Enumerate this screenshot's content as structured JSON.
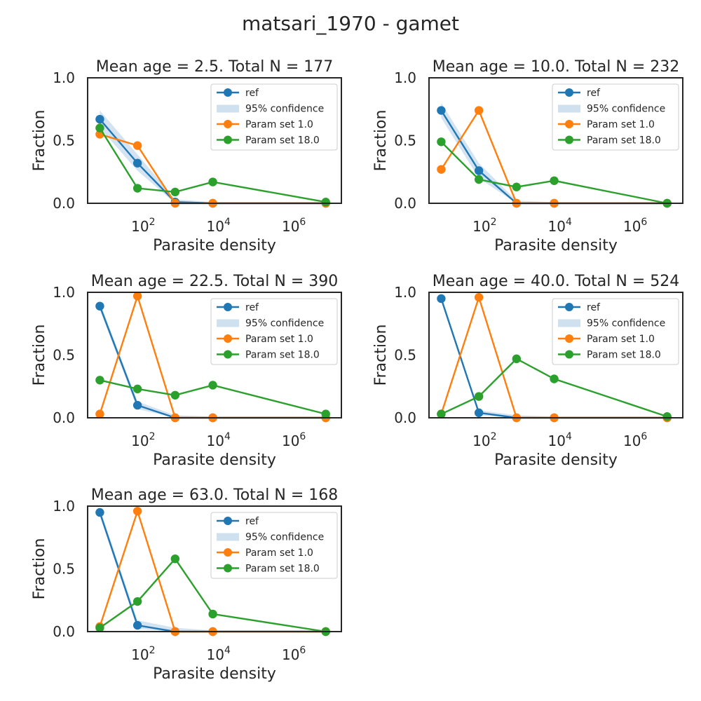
{
  "figure_title": "matsari_1970 - gamet",
  "colors": {
    "ref": "#1f77b4",
    "confidence": "#cfe0ef",
    "param1": "#ff7f0e",
    "param18": "#2ca02c",
    "axes": "#262626"
  },
  "chart_data": [
    {
      "type": "line",
      "title": "Mean age = 2.5.  Total N = 177",
      "xlabel": "Parasite density",
      "ylabel": "Fraction",
      "xscale": "log",
      "ylim": [
        0,
        1
      ],
      "x_ticks": [
        "10^2",
        "10^4",
        "10^6"
      ],
      "y_ticks": [
        "0.0",
        "0.5",
        "1.0"
      ],
      "legend": [
        "ref",
        "95% confidence",
        "Param set 1.0",
        "Param set 18.0"
      ],
      "legend_position": "top-right",
      "x": [
        5,
        50,
        500,
        5000,
        5000000
      ],
      "series": [
        {
          "name": "ref",
          "values": [
            0.67,
            0.32,
            0.01,
            0.0,
            0.0
          ],
          "ci_low": [
            0.6,
            0.26,
            0.0,
            0.0,
            0.0
          ],
          "ci_high": [
            0.74,
            0.39,
            0.03,
            0.01,
            0.01
          ]
        },
        {
          "name": "Param set 1.0",
          "values": [
            0.55,
            0.46,
            0.0,
            0.0,
            0.0
          ]
        },
        {
          "name": "Param set 18.0",
          "values": [
            0.6,
            0.12,
            0.09,
            0.17,
            0.01
          ]
        }
      ]
    },
    {
      "type": "line",
      "title": "Mean age = 10.0.  Total N = 232",
      "xlabel": "Parasite density",
      "ylabel": "Fraction",
      "xscale": "log",
      "ylim": [
        0,
        1
      ],
      "x_ticks": [
        "10^2",
        "10^4",
        "10^6"
      ],
      "y_ticks": [
        "0.0",
        "0.5",
        "1.0"
      ],
      "legend": [
        "ref",
        "95% confidence",
        "Param set 1.0",
        "Param set 18.0"
      ],
      "legend_position": "top-right",
      "x": [
        5,
        50,
        500,
        5000,
        5000000
      ],
      "series": [
        {
          "name": "ref",
          "values": [
            0.74,
            0.26,
            0.0,
            0.0,
            0.0
          ],
          "ci_low": [
            0.68,
            0.2,
            0.0,
            0.0,
            0.0
          ],
          "ci_high": [
            0.8,
            0.32,
            0.02,
            0.01,
            0.01
          ]
        },
        {
          "name": "Param set 1.0",
          "values": [
            0.27,
            0.74,
            0.0,
            0.0,
            0.0
          ]
        },
        {
          "name": "Param set 18.0",
          "values": [
            0.49,
            0.19,
            0.13,
            0.18,
            0.0
          ]
        }
      ]
    },
    {
      "type": "line",
      "title": "Mean age = 22.5.  Total N = 390",
      "xlabel": "Parasite density",
      "ylabel": "Fraction",
      "xscale": "log",
      "ylim": [
        0,
        1
      ],
      "x_ticks": [
        "10^2",
        "10^4",
        "10^6"
      ],
      "y_ticks": [
        "0.0",
        "0.5",
        "1.0"
      ],
      "legend": [
        "ref",
        "95% confidence",
        "Param set 1.0",
        "Param set 18.0"
      ],
      "legend_position": "top-right",
      "x": [
        5,
        50,
        500,
        5000,
        5000000
      ],
      "series": [
        {
          "name": "ref",
          "values": [
            0.89,
            0.1,
            0.0,
            0.0,
            0.0
          ],
          "ci_low": [
            0.86,
            0.07,
            0.0,
            0.0,
            0.0
          ],
          "ci_high": [
            0.92,
            0.13,
            0.02,
            0.01,
            0.01
          ]
        },
        {
          "name": "Param set 1.0",
          "values": [
            0.03,
            0.97,
            0.0,
            0.0,
            0.0
          ]
        },
        {
          "name": "Param set 18.0",
          "values": [
            0.3,
            0.23,
            0.18,
            0.26,
            0.03
          ]
        }
      ]
    },
    {
      "type": "line",
      "title": "Mean age = 40.0.  Total N = 524",
      "xlabel": "Parasite density",
      "ylabel": "Fraction",
      "xscale": "log",
      "ylim": [
        0,
        1
      ],
      "x_ticks": [
        "10^2",
        "10^4",
        "10^6"
      ],
      "y_ticks": [
        "0.0",
        "0.5",
        "1.0"
      ],
      "legend": [
        "ref",
        "95% confidence",
        "Param set 1.0",
        "Param set 18.0"
      ],
      "legend_position": "top-right",
      "x": [
        5,
        50,
        500,
        5000,
        5000000
      ],
      "series": [
        {
          "name": "ref",
          "values": [
            0.95,
            0.04,
            0.0,
            0.0,
            0.0
          ],
          "ci_low": [
            0.93,
            0.02,
            0.0,
            0.0,
            0.0
          ],
          "ci_high": [
            0.97,
            0.06,
            0.02,
            0.01,
            0.01
          ]
        },
        {
          "name": "Param set 1.0",
          "values": [
            0.03,
            0.96,
            0.0,
            0.0,
            0.0
          ]
        },
        {
          "name": "Param set 18.0",
          "values": [
            0.03,
            0.17,
            0.47,
            0.31,
            0.01
          ]
        }
      ]
    },
    {
      "type": "line",
      "title": "Mean age = 63.0.  Total N = 168",
      "xlabel": "Parasite density",
      "ylabel": "Fraction",
      "xscale": "log",
      "ylim": [
        0,
        1
      ],
      "x_ticks": [
        "10^2",
        "10^4",
        "10^6"
      ],
      "y_ticks": [
        "0.0",
        "0.5",
        "1.0"
      ],
      "legend": [
        "ref",
        "95% confidence",
        "Param set 1.0",
        "Param set 18.0"
      ],
      "legend_position": "top-right",
      "x": [
        5,
        50,
        500,
        5000,
        5000000
      ],
      "series": [
        {
          "name": "ref",
          "values": [
            0.95,
            0.05,
            0.0,
            0.0,
            0.0
          ],
          "ci_low": [
            0.92,
            0.02,
            0.0,
            0.0,
            0.0
          ],
          "ci_high": [
            0.98,
            0.09,
            0.03,
            0.01,
            0.01
          ]
        },
        {
          "name": "Param set 1.0",
          "values": [
            0.04,
            0.96,
            0.0,
            0.0,
            0.0
          ]
        },
        {
          "name": "Param set 18.0",
          "values": [
            0.03,
            0.24,
            0.58,
            0.14,
            0.0
          ]
        }
      ]
    }
  ]
}
